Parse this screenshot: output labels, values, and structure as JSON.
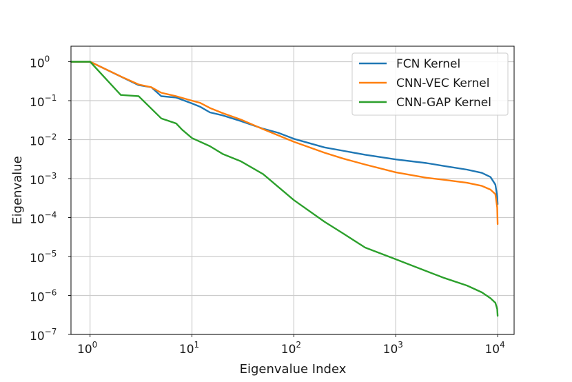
{
  "chart_data": {
    "type": "line",
    "title": "",
    "xlabel": "Eigenvalue Index",
    "ylabel": "Eigenvalue",
    "xscale": "log",
    "yscale": "log",
    "xlim": [
      0.65,
      14500
    ],
    "ylim": [
      1e-07,
      2.5
    ],
    "grid": true,
    "legend_position": "top-right",
    "x_ticks": [
      {
        "base": "10",
        "exp": "0",
        "value": 1
      },
      {
        "base": "10",
        "exp": "1",
        "value": 10
      },
      {
        "base": "10",
        "exp": "2",
        "value": 100
      },
      {
        "base": "10",
        "exp": "3",
        "value": 1000
      },
      {
        "base": "10",
        "exp": "4",
        "value": 10000
      }
    ],
    "y_ticks": [
      {
        "base": "10",
        "exp": "0",
        "value": 1
      },
      {
        "base": "10",
        "exp": "−1",
        "value": 0.1
      },
      {
        "base": "10",
        "exp": "−2",
        "value": 0.01
      },
      {
        "base": "10",
        "exp": "−3",
        "value": 0.001
      },
      {
        "base": "10",
        "exp": "−4",
        "value": 0.0001
      },
      {
        "base": "10",
        "exp": "−5",
        "value": 1e-05
      },
      {
        "base": "10",
        "exp": "−6",
        "value": 1e-06
      },
      {
        "base": "10",
        "exp": "−7",
        "value": 1e-07
      }
    ],
    "series": [
      {
        "name": "FCN Kernel",
        "color": "#1f77b4",
        "points": [
          [
            0.65,
            1.0
          ],
          [
            1,
            1.0
          ],
          [
            3,
            0.25
          ],
          [
            4,
            0.22
          ],
          [
            5,
            0.13
          ],
          [
            7,
            0.12
          ],
          [
            10,
            0.085
          ],
          [
            12,
            0.07
          ],
          [
            15,
            0.05
          ],
          [
            20,
            0.042
          ],
          [
            30,
            0.03
          ],
          [
            50,
            0.019
          ],
          [
            70,
            0.015
          ],
          [
            100,
            0.0105
          ],
          [
            200,
            0.0063
          ],
          [
            300,
            0.0052
          ],
          [
            500,
            0.0041
          ],
          [
            1000,
            0.0031
          ],
          [
            2000,
            0.0025
          ],
          [
            3000,
            0.0021
          ],
          [
            5000,
            0.0017
          ],
          [
            7000,
            0.0014
          ],
          [
            8500,
            0.0011
          ],
          [
            9500,
            0.0007
          ],
          [
            9900,
            0.00035
          ],
          [
            10000,
            0.00022
          ]
        ]
      },
      {
        "name": "CNN-VEC Kernel",
        "color": "#ff7f0e",
        "points": [
          [
            0.65,
            1.0
          ],
          [
            1,
            1.0
          ],
          [
            2,
            0.42
          ],
          [
            3,
            0.26
          ],
          [
            4,
            0.22
          ],
          [
            5,
            0.16
          ],
          [
            7,
            0.13
          ],
          [
            10,
            0.1
          ],
          [
            12,
            0.088
          ],
          [
            15,
            0.065
          ],
          [
            20,
            0.048
          ],
          [
            30,
            0.033
          ],
          [
            50,
            0.0185
          ],
          [
            100,
            0.0088
          ],
          [
            200,
            0.0046
          ],
          [
            300,
            0.0033
          ],
          [
            500,
            0.0023
          ],
          [
            1000,
            0.00145
          ],
          [
            2000,
            0.00105
          ],
          [
            3000,
            0.00093
          ],
          [
            5000,
            0.00078
          ],
          [
            7000,
            0.00065
          ],
          [
            8500,
            0.00052
          ],
          [
            9500,
            0.0004
          ],
          [
            9900,
            0.00018
          ],
          [
            10000,
            6.8e-05
          ]
        ]
      },
      {
        "name": "CNN-GAP Kernel",
        "color": "#2ca02c",
        "points": [
          [
            0.65,
            1.0
          ],
          [
            1,
            1.0
          ],
          [
            2,
            0.14
          ],
          [
            3,
            0.13
          ],
          [
            5,
            0.035
          ],
          [
            7,
            0.026
          ],
          [
            8,
            0.018
          ],
          [
            10,
            0.011
          ],
          [
            15,
            0.0068
          ],
          [
            20,
            0.0043
          ],
          [
            30,
            0.0028
          ],
          [
            50,
            0.0013
          ],
          [
            100,
            0.00028
          ],
          [
            200,
            7.8e-05
          ],
          [
            300,
            4e-05
          ],
          [
            500,
            1.7e-05
          ],
          [
            1000,
            8.5e-06
          ],
          [
            2000,
            4.2e-06
          ],
          [
            3000,
            2.8e-06
          ],
          [
            5000,
            1.8e-06
          ],
          [
            7000,
            1.2e-06
          ],
          [
            8500,
            8.5e-07
          ],
          [
            9500,
            6.5e-07
          ],
          [
            9900,
            4.5e-07
          ],
          [
            10000,
            3e-07
          ]
        ]
      }
    ]
  }
}
